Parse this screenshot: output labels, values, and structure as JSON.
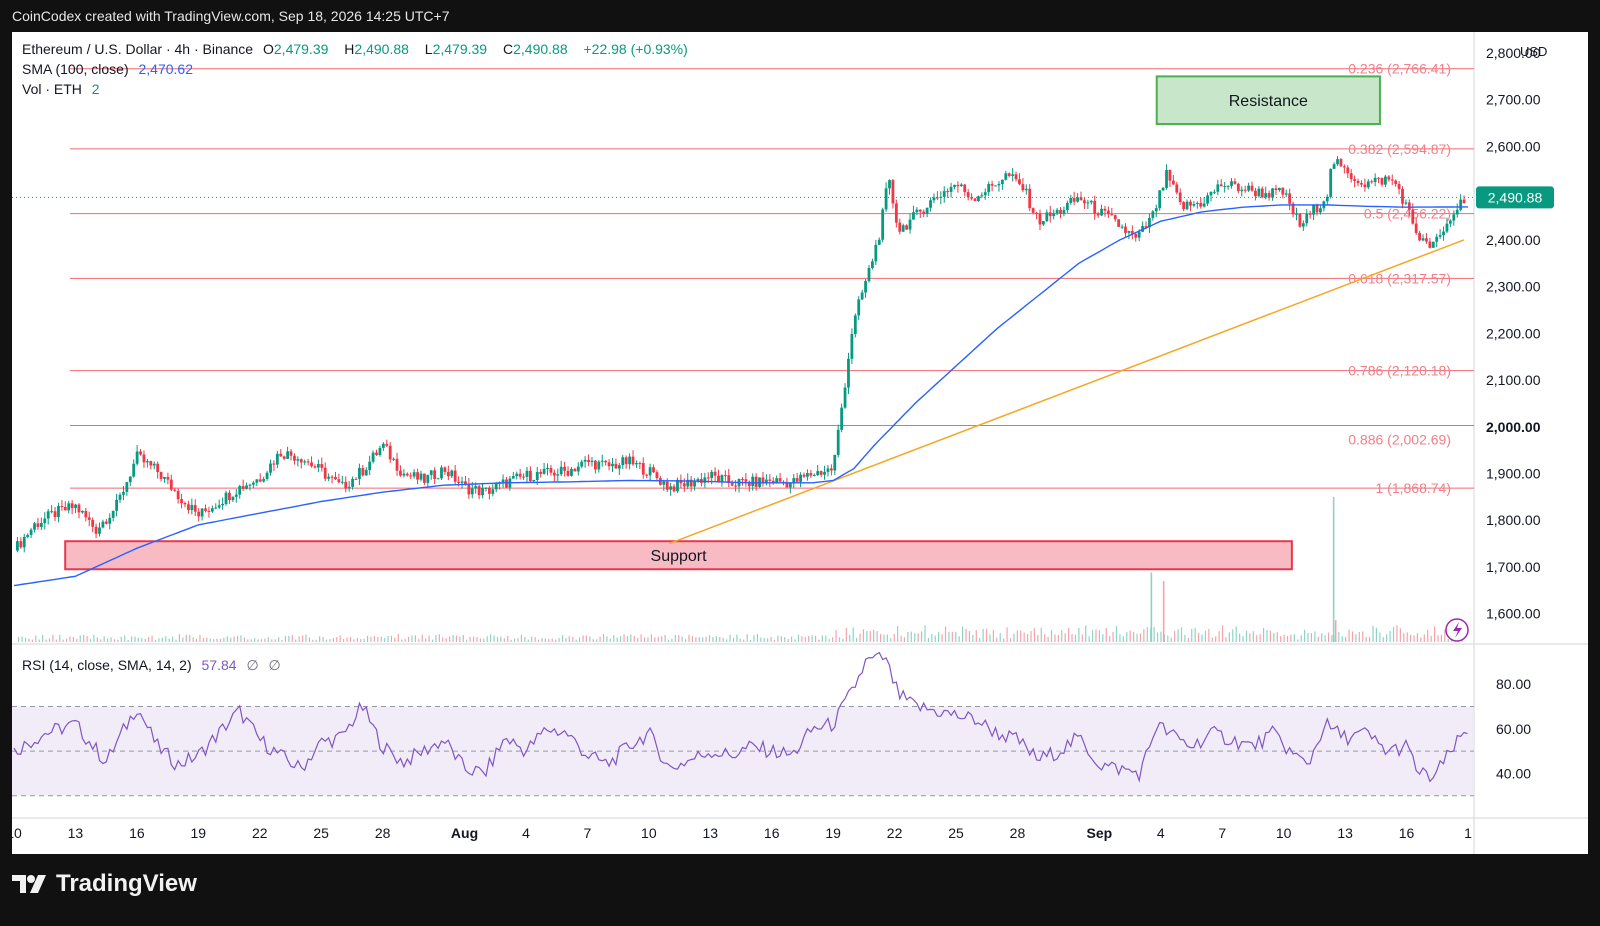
{
  "header": {
    "watermark": "CoinCodex created with TradingView.com, Sep 18, 2026 14:25 UTC+7"
  },
  "legend": {
    "symbol": "Ethereum / U.S. Dollar · 4h · Binance",
    "o_label": "O",
    "o": "2,479.39",
    "h_label": "H",
    "h": "2,490.88",
    "l_label": "L",
    "l": "2,479.39",
    "c_label": "C",
    "c": "2,490.88",
    "change": "+22.98 (+0.93%)",
    "sma_label": "SMA (100, close)",
    "sma_value": "2,470.62",
    "vol_label": "Vol · ETH",
    "vol_value": "2"
  },
  "rsi_legend": {
    "label": "RSI (14, close, SMA, 14, 2)",
    "value": "57.84",
    "na1": "∅",
    "na2": "∅"
  },
  "currency": "USD",
  "brand": {
    "name": "TradingView",
    "logo_icon": "tradingview-logo-icon"
  },
  "colors": {
    "up": "#089981",
    "down": "#f23645",
    "sma": "#2962ff",
    "trend": "#f5a623",
    "fib": "#f23645",
    "rsi": "#7e57c2"
  },
  "chart_data": [
    {
      "type": "candlestick",
      "price_axis": {
        "ticks": [
          1600,
          1700,
          1800,
          1900,
          2000,
          2100,
          2200,
          2300,
          2400,
          2500,
          2600,
          2700,
          2800
        ],
        "tick_labels": [
          "1,600.00",
          "1,700.00",
          "1,800.00",
          "1,900.00",
          "2,000.00",
          "2,100.00",
          "2,200.00",
          "2,300.00",
          "2,400.00",
          "2,500.00",
          "2,600.00",
          "2,700.00",
          "2,800.00"
        ],
        "ylim": [
          1535,
          2845
        ]
      },
      "x_axis": {
        "tick_labels": [
          "10",
          "13",
          "16",
          "19",
          "22",
          "25",
          "28",
          "Aug",
          "4",
          "7",
          "10",
          "13",
          "16",
          "19",
          "22",
          "25",
          "28",
          "Sep",
          "4",
          "7",
          "10",
          "13",
          "16",
          "1"
        ],
        "tick_days": [
          0,
          3,
          6,
          9,
          12,
          15,
          18,
          22,
          25,
          28,
          31,
          34,
          37,
          40,
          43,
          46,
          49,
          53,
          56,
          59,
          62,
          65,
          68,
          71
        ],
        "xlim_days": [
          0,
          71
        ]
      },
      "current_price_label": "2,490.88",
      "fib_levels": [
        {
          "label": "0.236 (2,766.41)",
          "price": 2766.41
        },
        {
          "label": "0.382 (2,594.87)",
          "price": 2594.87
        },
        {
          "label": "0.5 (2,456.22)",
          "price": 2456.22
        },
        {
          "label": "0.618 (2,317.57)",
          "price": 2317.57
        },
        {
          "label": "0.786 (2,120.18)",
          "price": 2120.18
        },
        {
          "label": "0.886 (2,002.69)",
          "price": 2002.69
        },
        {
          "label": "1 (1,868.74)",
          "price": 1868.74
        }
      ],
      "zones": [
        {
          "label": "Resistance",
          "day_range": [
            55.8,
            66.7
          ],
          "price_range": [
            2648,
            2750
          ]
        },
        {
          "label": "Support",
          "day_range": [
            2.5,
            62.4
          ],
          "price_range": [
            1695,
            1755
          ]
        }
      ],
      "trendline": {
        "from": {
          "day": 32,
          "price": 1750
        },
        "to": {
          "day": 70.8,
          "price": 2400
        }
      },
      "price_path": [
        [
          0,
          1735
        ],
        [
          1,
          1790
        ],
        [
          2,
          1815
        ],
        [
          3,
          1830
        ],
        [
          4,
          1780
        ],
        [
          5,
          1830
        ],
        [
          6,
          1935
        ],
        [
          7,
          1905
        ],
        [
          8,
          1855
        ],
        [
          9,
          1810
        ],
        [
          10,
          1840
        ],
        [
          11,
          1870
        ],
        [
          12,
          1890
        ],
        [
          13,
          1945
        ],
        [
          14,
          1935
        ],
        [
          15,
          1905
        ],
        [
          16,
          1870
        ],
        [
          17,
          1905
        ],
        [
          18,
          1960
        ],
        [
          19,
          1900
        ],
        [
          20,
          1885
        ],
        [
          21,
          1910
        ],
        [
          22,
          1870
        ],
        [
          23,
          1860
        ],
        [
          24,
          1880
        ],
        [
          25,
          1895
        ],
        [
          26,
          1900
        ],
        [
          27,
          1905
        ],
        [
          28,
          1925
        ],
        [
          29,
          1915
        ],
        [
          30,
          1925
        ],
        [
          31,
          1905
        ],
        [
          32,
          1870
        ],
        [
          33,
          1880
        ],
        [
          34,
          1895
        ],
        [
          35,
          1880
        ],
        [
          36,
          1880
        ],
        [
          37,
          1885
        ],
        [
          38,
          1880
        ],
        [
          39,
          1900
        ],
        [
          40,
          1910
        ],
        [
          40.6,
          2100
        ],
        [
          40.9,
          2200
        ],
        [
          41.3,
          2270
        ],
        [
          41.8,
          2340
        ],
        [
          42.3,
          2420
        ],
        [
          42.7,
          2530
        ],
        [
          43.2,
          2420
        ],
        [
          44,
          2450
        ],
        [
          44.7,
          2480
        ],
        [
          45.3,
          2500
        ],
        [
          46,
          2520
        ],
        [
          46.8,
          2490
        ],
        [
          47.6,
          2510
        ],
        [
          48.5,
          2540
        ],
        [
          49.3,
          2510
        ],
        [
          50,
          2440
        ],
        [
          51,
          2460
        ],
        [
          52,
          2490
        ],
        [
          53,
          2460
        ],
        [
          54,
          2430
        ],
        [
          54.8,
          2400
        ],
        [
          55.6,
          2450
        ],
        [
          56.3,
          2540
        ],
        [
          57,
          2470
        ],
        [
          58,
          2480
        ],
        [
          59,
          2520
        ],
        [
          60,
          2510
        ],
        [
          61,
          2500
        ],
        [
          62,
          2500
        ],
        [
          62.8,
          2430
        ],
        [
          63.5,
          2465
        ],
        [
          64.1,
          2495
        ],
        [
          64.4,
          2570
        ],
        [
          65,
          2545
        ],
        [
          66,
          2520
        ],
        [
          67,
          2530
        ],
        [
          67.5,
          2520
        ],
        [
          68,
          2470
        ],
        [
          68.5,
          2415
        ],
        [
          69,
          2385
        ],
        [
          69.6,
          2400
        ],
        [
          70.2,
          2450
        ],
        [
          70.8,
          2490.88
        ]
      ],
      "sma_path": [
        [
          0,
          1660
        ],
        [
          3,
          1680
        ],
        [
          6,
          1740
        ],
        [
          9,
          1790
        ],
        [
          12,
          1815
        ],
        [
          15,
          1840
        ],
        [
          18,
          1860
        ],
        [
          21,
          1875
        ],
        [
          24,
          1880
        ],
        [
          27,
          1882
        ],
        [
          30,
          1885
        ],
        [
          33,
          1884
        ],
        [
          36,
          1880
        ],
        [
          39,
          1880
        ],
        [
          40,
          1885
        ],
        [
          41,
          1910
        ],
        [
          42,
          1960
        ],
        [
          44,
          2050
        ],
        [
          46,
          2130
        ],
        [
          48,
          2210
        ],
        [
          50,
          2280
        ],
        [
          52,
          2350
        ],
        [
          54,
          2400
        ],
        [
          56,
          2440
        ],
        [
          58,
          2460
        ],
        [
          60,
          2470
        ],
        [
          62,
          2475
        ],
        [
          64,
          2475
        ],
        [
          66,
          2472
        ],
        [
          68,
          2470
        ],
        [
          70.8,
          2470.62
        ]
      ],
      "volume_spikes": [
        {
          "day": 55.5,
          "value": 0.48
        },
        {
          "day": 56.1,
          "value": 0.42
        },
        {
          "day": 64.4,
          "value": 1.0
        },
        {
          "day": 64.5,
          "value": 0.15
        }
      ]
    },
    {
      "type": "line",
      "name": "RSI",
      "axis": {
        "ticks": [
          40,
          60,
          80
        ],
        "tick_labels": [
          "40.00",
          "60.00",
          "80.00"
        ],
        "ylim": [
          20,
          98
        ]
      },
      "bands": {
        "upper": 70,
        "middle": 50,
        "lower": 30
      },
      "path": [
        [
          0,
          50
        ],
        [
          1.5,
          58
        ],
        [
          3,
          62
        ],
        [
          4.5,
          45
        ],
        [
          6,
          70
        ],
        [
          7,
          52
        ],
        [
          8,
          44
        ],
        [
          9,
          48
        ],
        [
          10,
          58
        ],
        [
          11,
          68
        ],
        [
          12,
          55
        ],
        [
          13,
          48
        ],
        [
          14,
          42
        ],
        [
          15,
          54
        ],
        [
          16,
          56
        ],
        [
          17,
          70
        ],
        [
          18,
          52
        ],
        [
          19,
          45
        ],
        [
          20,
          50
        ],
        [
          21,
          55
        ],
        [
          22,
          42
        ],
        [
          23,
          40
        ],
        [
          24,
          56
        ],
        [
          25,
          50
        ],
        [
          26,
          60
        ],
        [
          27,
          58
        ],
        [
          28,
          48
        ],
        [
          29,
          44
        ],
        [
          30,
          52
        ],
        [
          31,
          58
        ],
        [
          32,
          42
        ],
        [
          33,
          46
        ],
        [
          34,
          50
        ],
        [
          35,
          48
        ],
        [
          36,
          52
        ],
        [
          37,
          50
        ],
        [
          38,
          48
        ],
        [
          39,
          60
        ],
        [
          40,
          62
        ],
        [
          41,
          78
        ],
        [
          41.6,
          90
        ],
        [
          42.5,
          92
        ],
        [
          43.2,
          75
        ],
        [
          44,
          70
        ],
        [
          45,
          68
        ],
        [
          46,
          66
        ],
        [
          47,
          64
        ],
        [
          48,
          58
        ],
        [
          49,
          55
        ],
        [
          50,
          46
        ],
        [
          51,
          50
        ],
        [
          52,
          56
        ],
        [
          53,
          44
        ],
        [
          54,
          42
        ],
        [
          55,
          40
        ],
        [
          55.8,
          62
        ],
        [
          56.4,
          58
        ],
        [
          57.5,
          52
        ],
        [
          58.5,
          58
        ],
        [
          59.5,
          55
        ],
        [
          60.5,
          52
        ],
        [
          61.5,
          58
        ],
        [
          62.5,
          48
        ],
        [
          63.2,
          44
        ],
        [
          64,
          62
        ],
        [
          65,
          56
        ],
        [
          66,
          58
        ],
        [
          67,
          50
        ],
        [
          68,
          52
        ],
        [
          68.6,
          40
        ],
        [
          69.3,
          38
        ],
        [
          70.2,
          50
        ],
        [
          70.8,
          57.84
        ]
      ]
    }
  ]
}
